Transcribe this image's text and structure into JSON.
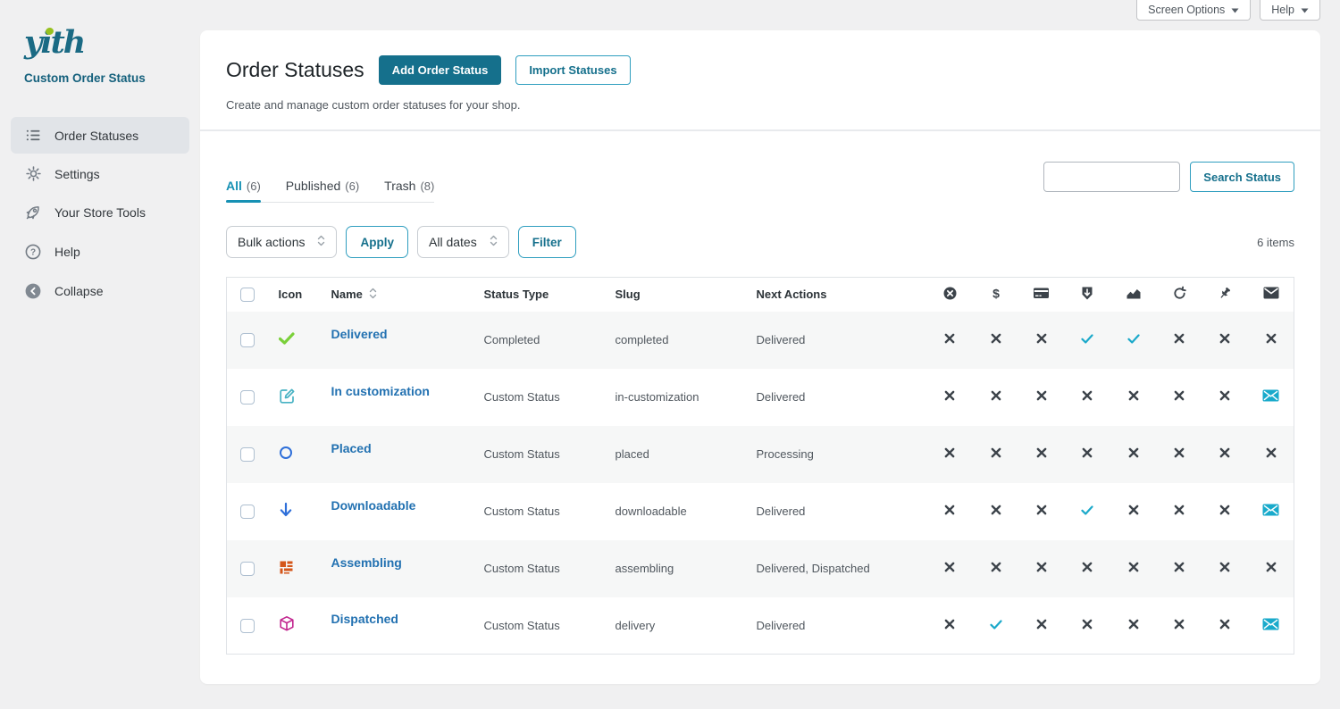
{
  "chrome": {
    "screen_options_label": "Screen Options",
    "help_label": "Help"
  },
  "sidebar": {
    "logo_text": "yith",
    "plugin_name": "Custom Order Status",
    "items": [
      {
        "label": "Order Statuses",
        "icon": "list",
        "active": true
      },
      {
        "label": "Settings",
        "icon": "gear",
        "active": false
      },
      {
        "label": "Your Store Tools",
        "icon": "rocket",
        "active": false
      },
      {
        "label": "Help",
        "icon": "question",
        "active": false
      },
      {
        "label": "Collapse",
        "icon": "collapse",
        "active": false
      }
    ]
  },
  "header": {
    "title": "Order Statuses",
    "add_button": "Add Order Status",
    "import_button": "Import Statuses",
    "subtitle": "Create and manage custom order statuses for your shop."
  },
  "tabs": [
    {
      "label": "All",
      "count": "(6)",
      "active": true
    },
    {
      "label": "Published",
      "count": "(6)",
      "active": false
    },
    {
      "label": "Trash",
      "count": "(8)",
      "active": false
    }
  ],
  "toolbar": {
    "bulk_actions_label": "Bulk actions",
    "apply_label": "Apply",
    "all_dates_label": "All dates",
    "filter_label": "Filter",
    "items_count": "6 items"
  },
  "search": {
    "value": "",
    "button_label": "Search Status"
  },
  "table": {
    "columns": {
      "icon": "Icon",
      "name": "Name",
      "status_type": "Status Type",
      "slug": "Slug",
      "next_actions": "Next Actions"
    },
    "flag_columns": [
      "cancel",
      "payment",
      "credit-card",
      "download",
      "sales-report",
      "restock",
      "pin",
      "email"
    ],
    "rows": [
      {
        "icon": "check-green",
        "name": "Delivered",
        "status_type": "Completed",
        "slug": "completed",
        "next_actions": "Delivered",
        "flags": [
          "x",
          "x",
          "x",
          "check",
          "check",
          "x",
          "x",
          "x"
        ]
      },
      {
        "icon": "edit-teal",
        "name": "In customization",
        "status_type": "Custom Status",
        "slug": "in-customization",
        "next_actions": "Delivered",
        "flags": [
          "x",
          "x",
          "x",
          "x",
          "x",
          "x",
          "x",
          "mail"
        ]
      },
      {
        "icon": "circle-blue",
        "name": "Placed",
        "status_type": "Custom Status",
        "slug": "placed",
        "next_actions": "Processing",
        "flags": [
          "x",
          "x",
          "x",
          "x",
          "x",
          "x",
          "x",
          "x"
        ]
      },
      {
        "icon": "arrow-down-blue",
        "name": "Downloadable",
        "status_type": "Custom Status",
        "slug": "downloadable",
        "next_actions": "Delivered",
        "flags": [
          "x",
          "x",
          "x",
          "check",
          "x",
          "x",
          "x",
          "mail"
        ]
      },
      {
        "icon": "bricks-orange",
        "name": "Assembling",
        "status_type": "Custom Status",
        "slug": "assembling",
        "next_actions": "Delivered, Dispatched",
        "flags": [
          "x",
          "x",
          "x",
          "x",
          "x",
          "x",
          "x",
          "x"
        ]
      },
      {
        "icon": "cube-magenta",
        "name": "Dispatched",
        "status_type": "Custom Status",
        "slug": "delivery",
        "next_actions": "Delivered",
        "flags": [
          "x",
          "check",
          "x",
          "x",
          "x",
          "x",
          "x",
          "mail"
        ]
      }
    ]
  },
  "colors": {
    "brand_teal": "#15708c",
    "tab_active_teal": "#1691b4",
    "link_blue": "#2271b1",
    "flag_check_teal": "#1ba9ca",
    "flag_x_dark": "#3c434a",
    "green_check": "#7ad03a",
    "orange_icon": "#d4561a",
    "magenta_icon": "#c2258f",
    "page_background": "#f0f0f1"
  }
}
